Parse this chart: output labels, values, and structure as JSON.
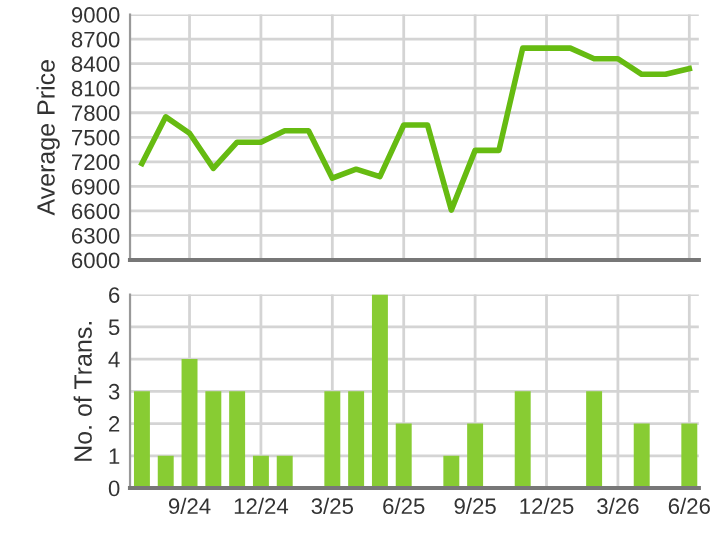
{
  "chart_data": [
    {
      "type": "line",
      "ylabel": "Average Price",
      "ylim": [
        6000,
        9000
      ],
      "yticks": [
        6000,
        6300,
        6600,
        6900,
        7200,
        7500,
        7800,
        8100,
        8400,
        8700,
        9000
      ],
      "categories": [
        null,
        null,
        null,
        null,
        null,
        null,
        null,
        null,
        null,
        null,
        null,
        null,
        null,
        null,
        null,
        null,
        null,
        null,
        null,
        null,
        null,
        null,
        null,
        null
      ],
      "tick_labels": "y",
      "grid": true,
      "legend": false,
      "marker": "none",
      "series": [
        {
          "color": "#66bb11",
          "line_style": "solid",
          "values": [
            7180,
            7750,
            7550,
            7120,
            7440,
            7440,
            7580,
            7580,
            7000,
            7110,
            7020,
            7650,
            7650,
            6610,
            7340,
            7340,
            8590,
            8590,
            8590,
            8460,
            8460,
            8270,
            8270,
            8340
          ]
        }
      ]
    },
    {
      "type": "bar",
      "ylabel": "No. of Trans.",
      "ylim": [
        0,
        6
      ],
      "yticks": [
        0,
        1,
        2,
        3,
        4,
        5,
        6
      ],
      "categories": [
        null,
        null,
        "9/24",
        null,
        null,
        "12/24",
        null,
        null,
        "3/25",
        null,
        null,
        "6/25",
        null,
        null,
        "9/25",
        null,
        null,
        "12/25",
        null,
        null,
        "3/26",
        null,
        null,
        "6/26"
      ],
      "grid": true,
      "legend": false,
      "values": [
        3,
        1,
        4,
        3,
        3,
        1,
        1,
        0,
        3,
        3,
        6,
        2,
        0,
        1,
        2,
        0,
        3,
        0,
        0,
        3,
        0,
        2,
        0,
        2
      ],
      "color": "#88cc33"
    }
  ]
}
